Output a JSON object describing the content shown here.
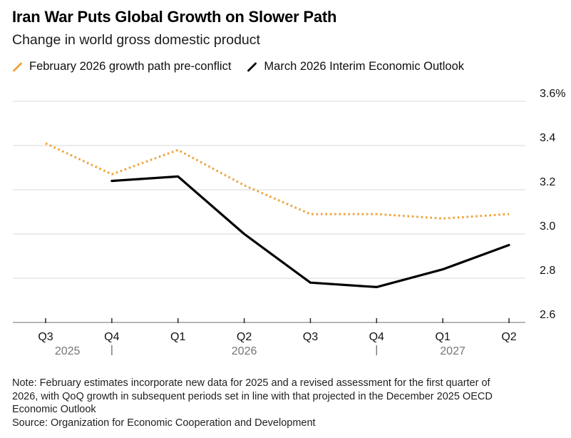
{
  "header": {
    "title": "Iran War Puts Global Growth on Slower Path",
    "subtitle": "Change in world gross domestic product"
  },
  "colors": {
    "accent_orange": "#F0A238",
    "line_black": "#000000",
    "grid": "#D7D7D7",
    "axis": "#8C8C8C",
    "tick": "#2B2B2B",
    "axis_text": "#111111",
    "year_gray": "#757575"
  },
  "chart_data": {
    "type": "line",
    "title": "Iran War Puts Global Growth on Slower Path",
    "subtitle": "Change in world gross domestic product",
    "unit": "%",
    "grid": "horizontal",
    "legend_position": "top",
    "categories": [
      "Q3 2025",
      "Q4 2025",
      "Q1 2026",
      "Q2 2026",
      "Q3 2026",
      "Q4 2026",
      "Q1 2027",
      "Q2 2027"
    ],
    "x_tick_labels": [
      "Q3",
      "Q4",
      "Q1",
      "Q2",
      "Q3",
      "Q4",
      "Q1",
      "Q2"
    ],
    "years": [
      {
        "label": "2025",
        "center_index": 0.33,
        "divider_after_index": 1
      },
      {
        "label": "2026",
        "center_index": 3.0,
        "divider_after_index": 5
      },
      {
        "label": "2027",
        "center_index": 6.15,
        "divider_after_index": null
      }
    ],
    "y_axis": {
      "side": "right",
      "min": 2.6,
      "max": 3.6,
      "ticks": [
        {
          "label": "3.6%",
          "value": 3.6
        },
        {
          "label": "3.4",
          "value": 3.4
        },
        {
          "label": "3.2",
          "value": 3.2
        },
        {
          "label": "3.0",
          "value": 3.0
        },
        {
          "label": "2.8",
          "value": 2.8
        },
        {
          "label": "2.6",
          "value": 2.6
        }
      ]
    },
    "series": [
      {
        "name": "February 2026 growth path pre-conflict",
        "style": "dotted",
        "color": "#F0A238",
        "values": [
          3.41,
          3.27,
          3.38,
          3.22,
          3.09,
          3.09,
          3.07,
          3.09
        ]
      },
      {
        "name": "March 2026 Interim Economic Outlook",
        "style": "solid",
        "color": "#000000",
        "values": [
          null,
          3.24,
          3.26,
          3.0,
          2.78,
          2.76,
          2.84,
          2.95
        ]
      }
    ]
  },
  "notes": {
    "lines": [
      "Note: February estimates incorporate new data for 2025 and a revised assessment for the first quarter of",
      "2026, with QoQ growth in subsequent periods set in line with that projected in the December 2025 OECD",
      "Economic Outlook"
    ],
    "source": "Source: Organization for Economic Cooperation and Development"
  }
}
